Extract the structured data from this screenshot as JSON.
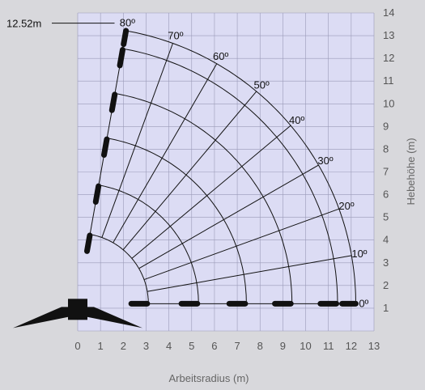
{
  "chart_data": {
    "type": "line",
    "title": "",
    "xlabel": "Arbeitsradius (m)",
    "ylabel": "Hebehöhe (m)",
    "xlim": [
      0,
      13
    ],
    "ylim": [
      0,
      14
    ],
    "x_ticks": [
      "0",
      "1",
      "2",
      "3",
      "4",
      "5",
      "6",
      "7",
      "8",
      "9",
      "10",
      "11",
      "12",
      "13"
    ],
    "y_ticks": [
      "1",
      "2",
      "3",
      "4",
      "5",
      "6",
      "7",
      "8",
      "9",
      "10",
      "11",
      "12",
      "13",
      "14"
    ],
    "grid": true,
    "pivot": {
      "x": 0,
      "y": 1.2
    },
    "boom_lengths": [
      3.1,
      5.3,
      7.4,
      9.4,
      11.4,
      12.2
    ],
    "angles": [
      {
        "value": 0,
        "label": "0º"
      },
      {
        "value": 10,
        "label": "10º"
      },
      {
        "value": 20,
        "label": "20º"
      },
      {
        "value": 30,
        "label": "30º"
      },
      {
        "value": 40,
        "label": "40º"
      },
      {
        "value": 50,
        "label": "50º"
      },
      {
        "value": 60,
        "label": "60º"
      },
      {
        "value": 70,
        "label": "70º"
      },
      {
        "value": 80,
        "label": "80º"
      }
    ],
    "annotations": [
      {
        "text": "12.52m",
        "x": 1.9,
        "y": 13.55
      }
    ],
    "colors": {
      "background": "#d8d8dc",
      "plot_fill": "#dcdcf4",
      "grid": "#9a9ab8",
      "lines": "#111111"
    }
  }
}
